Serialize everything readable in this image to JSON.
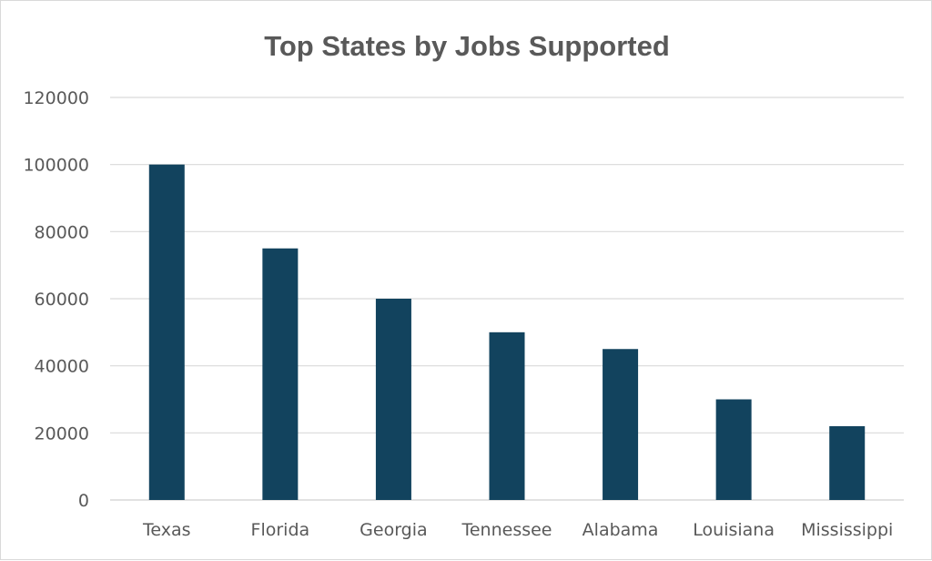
{
  "chart_data": {
    "type": "bar",
    "title": "Top States by Jobs Supported",
    "categories": [
      "Texas",
      "Florida",
      "Georgia",
      "Tennessee",
      "Alabama",
      "Louisiana",
      "Mississippi"
    ],
    "values": [
      100000,
      75000,
      60000,
      50000,
      45000,
      30000,
      22000
    ],
    "ylim": [
      0,
      120000
    ],
    "yticks": [
      "0",
      "20000",
      "40000",
      "60000",
      "80000",
      "100000",
      "120000"
    ],
    "xlabel": "",
    "ylabel": "",
    "grid": true,
    "legend": "none",
    "bar_color": "#12435e"
  }
}
